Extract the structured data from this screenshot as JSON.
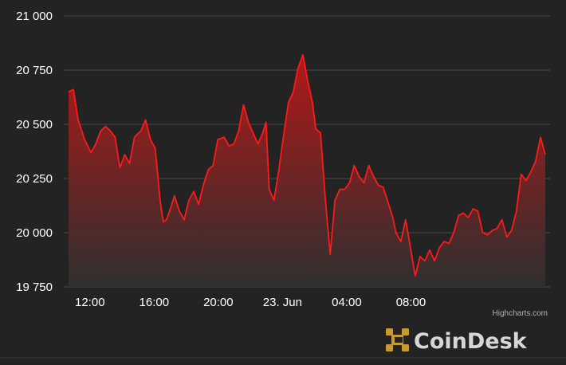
{
  "chart_data": {
    "type": "area",
    "title": "",
    "xlabel": "",
    "ylabel": "",
    "x_ticks": [
      "12:00",
      "16:00",
      "20:00",
      "23. Jun",
      "04:00",
      "08:00"
    ],
    "y_ticks": [
      "19 750",
      "20 000",
      "20 250",
      "20 500",
      "20 750",
      "21 000"
    ],
    "ylim": [
      19750,
      21000
    ],
    "grid": "horizontal",
    "x_unit": "hours since 22 Jun 10:40",
    "series": [
      {
        "name": "",
        "x": [
          0,
          0.3,
          0.6,
          1.0,
          1.4,
          1.7,
          2.0,
          2.3,
          2.6,
          2.9,
          3.2,
          3.5,
          3.8,
          4.1,
          4.5,
          4.8,
          5.1,
          5.4,
          5.7,
          5.9,
          6.1,
          6.3,
          6.6,
          6.9,
          7.2,
          7.5,
          7.8,
          8.1,
          8.4,
          8.7,
          9.0,
          9.3,
          9.7,
          10.0,
          10.3,
          10.6,
          10.9,
          11.2,
          11.5,
          11.8,
          12.1,
          12.3,
          12.5,
          12.8,
          13.1,
          13.4,
          13.7,
          14.0,
          14.3,
          14.6,
          14.9,
          15.2,
          15.4,
          15.7,
          16.0,
          16.3,
          16.6,
          16.9,
          17.2,
          17.5,
          17.8,
          18.1,
          18.4,
          18.7,
          19.0,
          19.3,
          19.6,
          19.9,
          20.2,
          20.4,
          20.7,
          21.0,
          21.3,
          21.6,
          21.9,
          22.2,
          22.5,
          22.8,
          23.1,
          23.4,
          23.7,
          24.0,
          24.3,
          24.6,
          24.9,
          25.2,
          25.5,
          25.8,
          26.1,
          26.4,
          26.7,
          27.0,
          27.3,
          27.6,
          27.9,
          28.2,
          28.5,
          28.8,
          29.1,
          29.4,
          29.7
        ],
        "y": [
          20650,
          20660,
          20520,
          20430,
          20370,
          20410,
          20470,
          20490,
          20470,
          20440,
          20300,
          20360,
          20320,
          20440,
          20470,
          20520,
          20430,
          20390,
          20150,
          20050,
          20060,
          20100,
          20170,
          20100,
          20060,
          20150,
          20190,
          20130,
          20220,
          20290,
          20310,
          20430,
          20440,
          20400,
          20410,
          20470,
          20590,
          20510,
          20460,
          20410,
          20460,
          20510,
          20200,
          20150,
          20290,
          20450,
          20600,
          20650,
          20760,
          20820,
          20700,
          20600,
          20480,
          20460,
          20150,
          19900,
          20150,
          20200,
          20200,
          20230,
          20310,
          20260,
          20230,
          20310,
          20260,
          20220,
          20210,
          20140,
          20070,
          20000,
          19960,
          20060,
          19930,
          19800,
          19890,
          19870,
          19920,
          19870,
          19930,
          19960,
          19950,
          20000,
          20080,
          20090,
          20070,
          20110,
          20100,
          20000,
          19990,
          20010,
          20020,
          20060,
          19980,
          20010,
          20100,
          20270,
          20240,
          20280,
          20330,
          20440,
          20360
        ]
      }
    ],
    "colors": {
      "line": "#ff1a1a",
      "fill_top": "#b81818",
      "fill_bottom": "#303030",
      "background": "#232323",
      "grid": "#4a4a4a"
    }
  },
  "credits": "Highcharts.com",
  "brand": {
    "name": "CoinDesk",
    "logo_color": "#c89b32"
  }
}
